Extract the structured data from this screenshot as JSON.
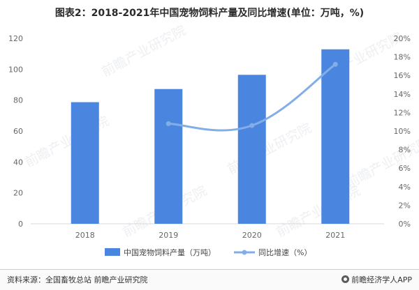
{
  "title": "图表2：2018-2021年中国宠物饲料产量及同比增速(单位：万吨，%)",
  "footer": {
    "source": "资料来源：全国畜牧总站 前瞻产业研究院",
    "brand": "前瞻经济学人APP",
    "brand_icon": "brand-logo-icon"
  },
  "watermark": "前瞻产业研究院",
  "colors": {
    "bar": "#4a86e0",
    "line": "#82aee8",
    "axis_text": "#666666",
    "grid": "#e6e6e6"
  },
  "chart_data": {
    "type": "bar",
    "categories": [
      "2018",
      "2019",
      "2020",
      "2021"
    ],
    "series": [
      {
        "name": "中国宠物饲料产量（万吨）",
        "type": "bar",
        "axis": "left",
        "values": [
          78.7,
          87.2,
          96.4,
          112.9
        ]
      },
      {
        "name": "同比增速（%）",
        "type": "line",
        "axis": "right",
        "values": [
          null,
          10.8,
          10.6,
          17.2
        ]
      }
    ],
    "y_left": {
      "min": 0,
      "max": 120,
      "ticks": [
        0,
        20,
        40,
        60,
        80,
        100,
        120
      ]
    },
    "y_right": {
      "min": 0,
      "max": 20,
      "ticks": [
        "0%",
        "2%",
        "4%",
        "6%",
        "8%",
        "10%",
        "12%",
        "14%",
        "16%",
        "18%",
        "20%"
      ]
    },
    "legend_position": "bottom",
    "grid": false
  }
}
